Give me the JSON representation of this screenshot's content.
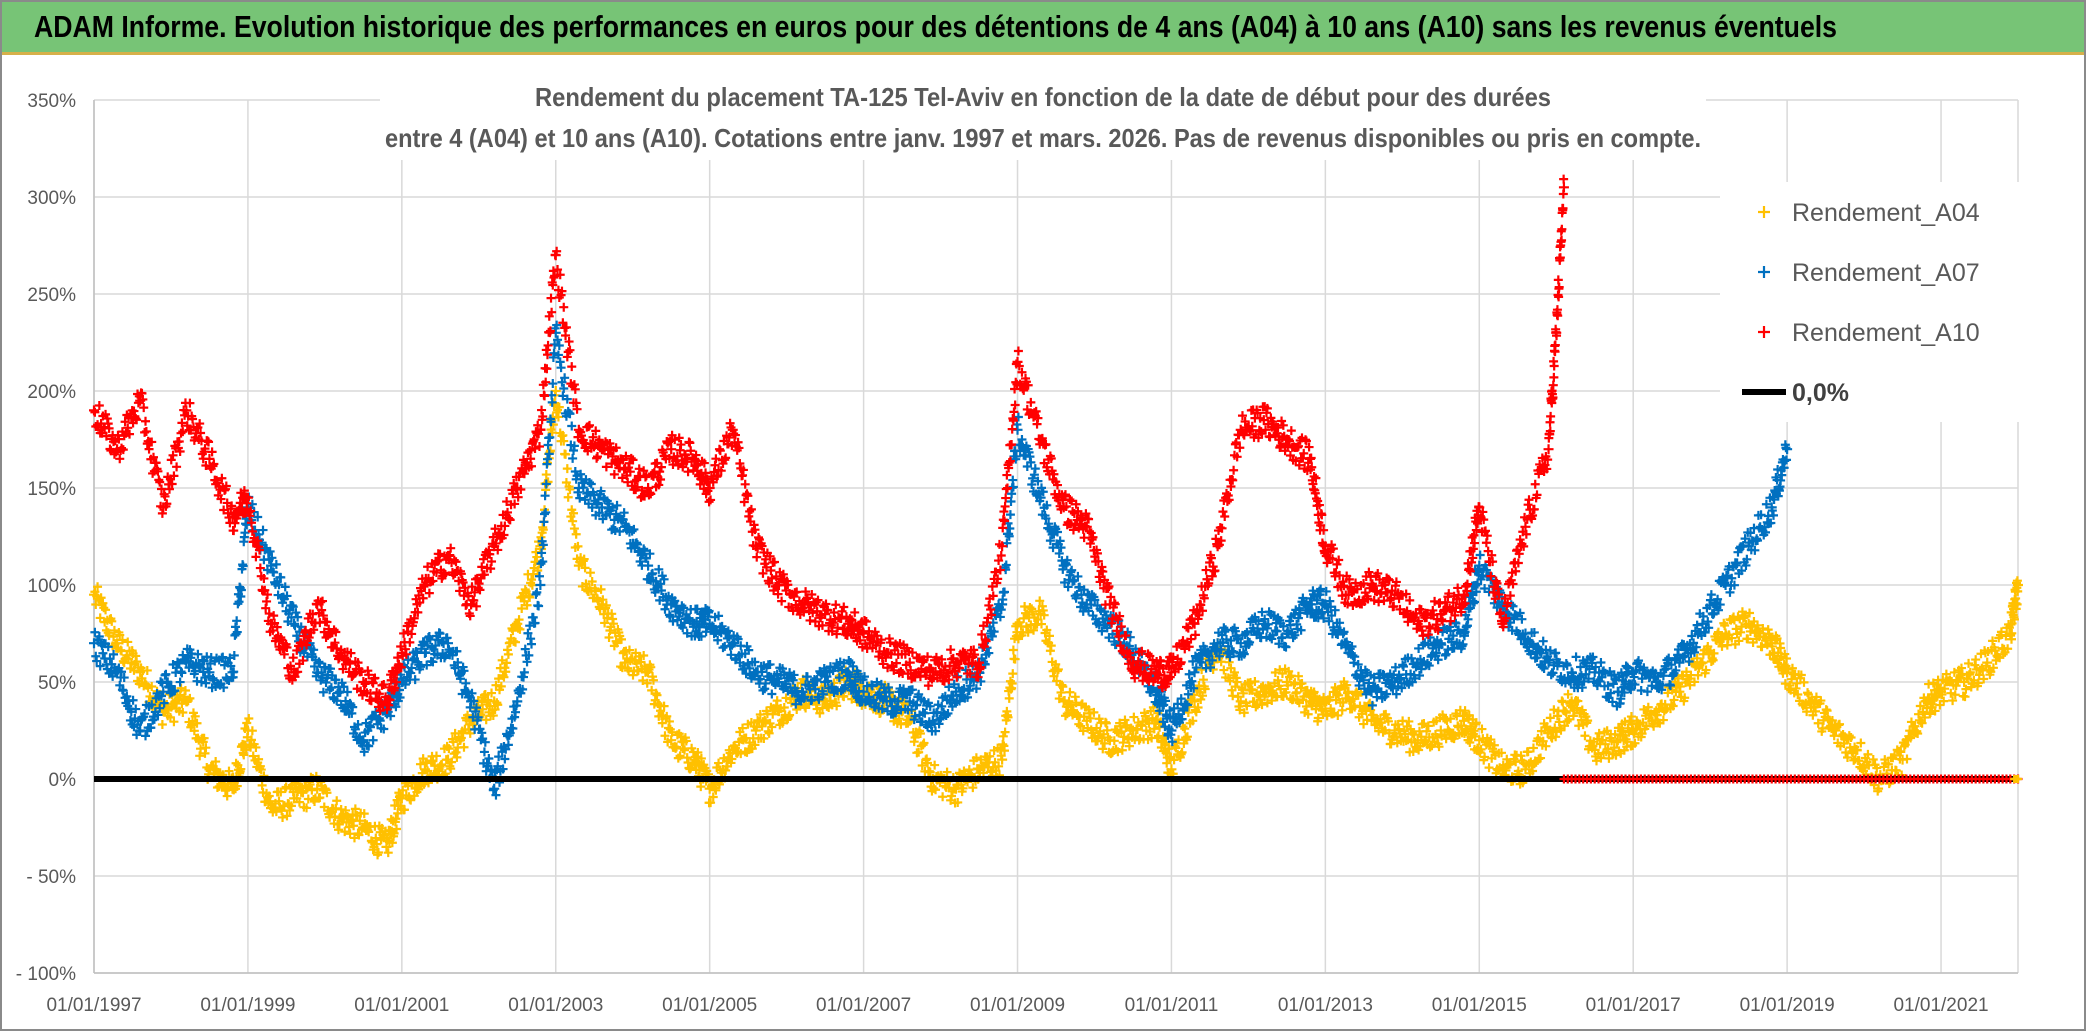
{
  "banner": {
    "title": "ADAM Informe. Evolution historique des performances en euros pour des détentions de 4 ans (A04) à 10 ans (A10) sans les revenus éventuels"
  },
  "colors": {
    "banner_bg": "#77c476",
    "A04": "#ffc000",
    "A07": "#0070c0",
    "A10": "#ff0000",
    "zero_line": "#000000",
    "grid": "#d9d9d9"
  },
  "chart_data": {
    "type": "scatter",
    "title_line1": "Rendement du placement TA-125 Tel-Aviv en fonction de la date de début pour des durées",
    "title_line2": "entre 4 (A04) et 10 ans (A10). Cotations entre janv. 1997 et mars. 2026. Pas de revenus disponibles ou pris en compte.",
    "xlabel": "",
    "ylabel": "",
    "x_range_years": [
      1997.0,
      2022.0
    ],
    "ylim": [
      -100,
      350
    ],
    "y_ticks": [
      {
        "value": 350,
        "label": "350%"
      },
      {
        "value": 300,
        "label": "300%"
      },
      {
        "value": 250,
        "label": "250%"
      },
      {
        "value": 200,
        "label": "200%"
      },
      {
        "value": 150,
        "label": "150%"
      },
      {
        "value": 100,
        "label": "100%"
      },
      {
        "value": 50,
        "label": "50%"
      },
      {
        "value": 0,
        "label": "0%"
      },
      {
        "value": -50,
        "label": "- 50%"
      },
      {
        "value": -100,
        "label": "- 100%"
      }
    ],
    "x_ticks": [
      {
        "value": 1997.0,
        "label": "01/01/1997"
      },
      {
        "value": 1999.0,
        "label": "01/01/1999"
      },
      {
        "value": 2001.0,
        "label": "01/01/2001"
      },
      {
        "value": 2003.0,
        "label": "01/01/2003"
      },
      {
        "value": 2005.0,
        "label": "01/01/2005"
      },
      {
        "value": 2007.0,
        "label": "01/01/2007"
      },
      {
        "value": 2009.0,
        "label": "01/01/2009"
      },
      {
        "value": 2011.0,
        "label": "01/01/2011"
      },
      {
        "value": 2013.0,
        "label": "01/01/2013"
      },
      {
        "value": 2015.0,
        "label": "01/01/2015"
      },
      {
        "value": 2017.0,
        "label": "01/01/2017"
      },
      {
        "value": 2019.0,
        "label": "01/01/2019"
      },
      {
        "value": 2021.0,
        "label": "01/01/2021"
      }
    ],
    "legend_position": "top-right",
    "series": [
      {
        "name": "Rendement_A04",
        "color": "#ffc000",
        "marker": "plus",
        "x": [
          1997.0,
          1997.3,
          1997.6,
          1997.9,
          1998.2,
          1998.5,
          1998.8,
          1999.0,
          1999.3,
          1999.6,
          1999.9,
          2000.2,
          2000.5,
          2000.8,
          2001.0,
          2001.3,
          2001.6,
          2001.9,
          2002.2,
          2002.5,
          2002.8,
          2003.0,
          2003.3,
          2003.6,
          2003.9,
          2004.2,
          2004.5,
          2004.8,
          2005.0,
          2005.3,
          2005.6,
          2005.9,
          2006.2,
          2006.5,
          2006.8,
          2007.0,
          2007.3,
          2007.6,
          2007.9,
          2008.2,
          2008.5,
          2008.8,
          2009.0,
          2009.3,
          2009.6,
          2009.9,
          2010.2,
          2010.5,
          2010.8,
          2011.0,
          2011.3,
          2011.6,
          2011.9,
          2012.2,
          2012.5,
          2012.8,
          2013.0,
          2013.3,
          2013.6,
          2013.9,
          2014.2,
          2014.5,
          2014.8,
          2015.0,
          2015.3,
          2015.6,
          2015.9,
          2016.2,
          2016.5,
          2016.8,
          2017.0,
          2017.3,
          2017.6,
          2017.9,
          2018.2,
          2018.5,
          2018.8,
          2019.0,
          2019.3,
          2019.6,
          2019.9,
          2020.2,
          2020.5,
          2020.8,
          2021.0,
          2021.3,
          2021.6,
          2021.9,
          2022.0
        ],
        "values": [
          95,
          70,
          55,
          35,
          40,
          5,
          -5,
          25,
          -15,
          -10,
          -5,
          -20,
          -25,
          -35,
          -10,
          5,
          10,
          30,
          40,
          80,
          120,
          200,
          110,
          90,
          60,
          55,
          20,
          10,
          -5,
          15,
          25,
          35,
          45,
          40,
          50,
          45,
          40,
          30,
          0,
          -5,
          5,
          10,
          80,
          85,
          40,
          30,
          20,
          25,
          30,
          5,
          40,
          70,
          40,
          45,
          50,
          40,
          35,
          45,
          30,
          25,
          20,
          25,
          30,
          20,
          5,
          5,
          25,
          40,
          15,
          20,
          25,
          35,
          45,
          60,
          75,
          80,
          70,
          55,
          40,
          25,
          15,
          0,
          10,
          40,
          45,
          50,
          60,
          75,
          100
        ]
      },
      {
        "name": "Rendement_A07",
        "color": "#0070c0",
        "marker": "plus",
        "x": [
          1997.0,
          1997.3,
          1997.6,
          1997.9,
          1998.2,
          1998.5,
          1998.8,
          1999.0,
          1999.3,
          1999.6,
          1999.9,
          2000.2,
          2000.5,
          2000.8,
          2001.0,
          2001.3,
          2001.6,
          2001.9,
          2002.2,
          2002.5,
          2002.8,
          2003.0,
          2003.3,
          2003.6,
          2003.9,
          2004.2,
          2004.5,
          2004.8,
          2005.0,
          2005.3,
          2005.6,
          2005.9,
          2006.2,
          2006.5,
          2006.8,
          2007.0,
          2007.3,
          2007.6,
          2007.9,
          2008.2,
          2008.5,
          2008.8,
          2009.0,
          2009.3,
          2009.6,
          2009.9,
          2010.2,
          2010.5,
          2010.8,
          2011.0,
          2011.3,
          2011.6,
          2011.9,
          2012.2,
          2012.5,
          2012.8,
          2013.0,
          2013.3,
          2013.6,
          2013.9,
          2014.2,
          2014.5,
          2014.8,
          2015.0,
          2015.3,
          2015.6,
          2015.9,
          2016.2,
          2016.5,
          2016.8,
          2017.0,
          2017.3,
          2017.6,
          2017.9,
          2018.2,
          2018.5,
          2018.8,
          2019.0
        ],
        "values": [
          70,
          55,
          25,
          45,
          60,
          55,
          55,
          140,
          110,
          80,
          55,
          45,
          20,
          35,
          50,
          65,
          70,
          40,
          -5,
          40,
          100,
          230,
          150,
          140,
          130,
          110,
          90,
          80,
          80,
          70,
          55,
          50,
          45,
          50,
          55,
          45,
          40,
          40,
          30,
          45,
          55,
          90,
          180,
          145,
          110,
          90,
          80,
          65,
          45,
          25,
          55,
          70,
          70,
          80,
          75,
          90,
          90,
          65,
          45,
          50,
          60,
          70,
          75,
          110,
          90,
          75,
          60,
          55,
          55,
          45,
          55,
          50,
          60,
          80,
          100,
          120,
          140,
          170
        ]
      },
      {
        "name": "Rendement_A10",
        "color": "#ff0000",
        "marker": "plus",
        "x": [
          1997.0,
          1997.3,
          1997.6,
          1997.9,
          1998.2,
          1998.5,
          1998.8,
          1999.0,
          1999.3,
          1999.6,
          1999.9,
          2000.2,
          2000.5,
          2000.8,
          2001.0,
          2001.3,
          2001.6,
          2001.9,
          2002.2,
          2002.5,
          2002.8,
          2003.0,
          2003.3,
          2003.6,
          2003.9,
          2004.2,
          2004.5,
          2004.8,
          2005.0,
          2005.3,
          2005.6,
          2005.9,
          2006.2,
          2006.5,
          2006.8,
          2007.0,
          2007.3,
          2007.6,
          2007.9,
          2008.2,
          2008.5,
          2008.8,
          2009.0,
          2009.3,
          2009.6,
          2009.9,
          2010.2,
          2010.5,
          2010.8,
          2011.0,
          2011.3,
          2011.6,
          2011.9,
          2012.2,
          2012.5,
          2012.8,
          2013.0,
          2013.3,
          2013.6,
          2013.9,
          2014.2,
          2014.5,
          2014.8,
          2015.0,
          2015.3,
          2015.6,
          2015.9,
          2016.0,
          2016.1
        ],
        "values": [
          190,
          170,
          195,
          140,
          190,
          165,
          135,
          145,
          80,
          55,
          90,
          65,
          50,
          40,
          65,
          100,
          115,
          90,
          120,
          150,
          180,
          270,
          180,
          170,
          160,
          150,
          170,
          165,
          150,
          180,
          120,
          100,
          90,
          85,
          80,
          75,
          65,
          60,
          55,
          60,
          60,
          120,
          215,
          175,
          140,
          130,
          90,
          60,
          55,
          55,
          80,
          120,
          180,
          185,
          175,
          165,
          120,
          95,
          100,
          95,
          80,
          85,
          95,
          140,
          80,
          130,
          170,
          230,
          305
        ]
      },
      {
        "name": "0,0%",
        "color": "#000000",
        "marker": "line",
        "x": [
          1997.0,
          2022.0
        ],
        "values": [
          0,
          0
        ]
      }
    ],
    "zero_band_A10": {
      "x_start": 2016.1,
      "x_end": 2022.0,
      "value": 0
    }
  }
}
